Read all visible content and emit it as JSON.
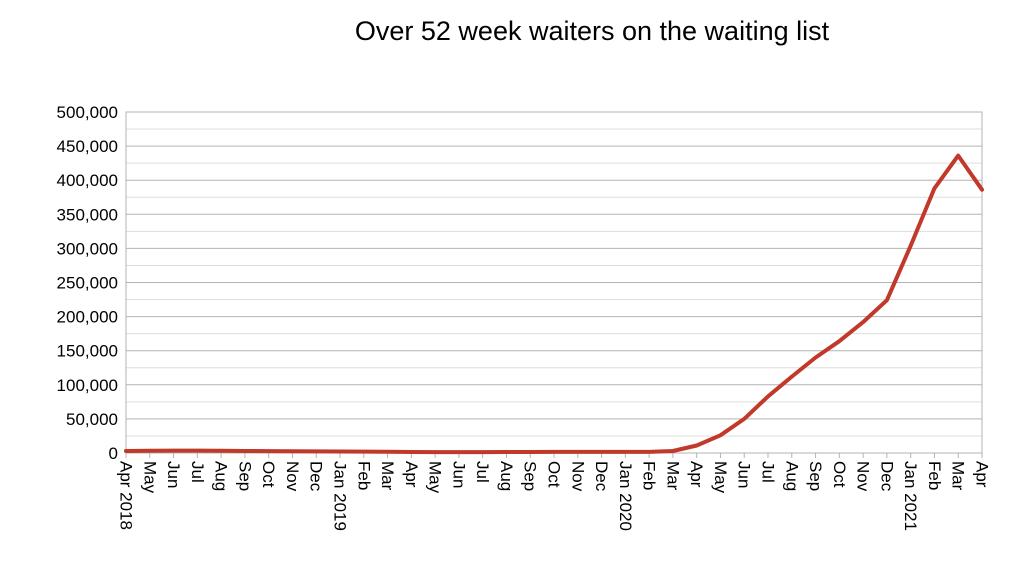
{
  "chart_data": {
    "type": "line",
    "title": "Over 52 week waiters on the waiting list",
    "xlabel": "",
    "ylabel": "",
    "ylim": [
      0,
      500000
    ],
    "yticks": [
      0,
      50000,
      100000,
      150000,
      200000,
      250000,
      300000,
      350000,
      400000,
      450000,
      500000
    ],
    "ytick_labels": [
      "0",
      "50,000",
      "100,000",
      "150,000",
      "200,000",
      "250,000",
      "300,000",
      "350,000",
      "400,000",
      "450,000",
      "500,000"
    ],
    "grid": true,
    "legend": "none",
    "categories": [
      "Apr 2018",
      "May",
      "Jun",
      "Jul",
      "Aug",
      "Sep",
      "Oct",
      "Nov",
      "Dec",
      "Jan 2019",
      "Feb",
      "Mar",
      "Apr",
      "May",
      "Jun",
      "Jul",
      "Aug",
      "Sep",
      "Oct",
      "Nov",
      "Dec",
      "Jan 2020",
      "Feb",
      "Mar",
      "Apr",
      "May",
      "Jun",
      "Jul",
      "Aug",
      "Sep",
      "Oct",
      "Nov",
      "Dec",
      "Jan 2021",
      "Feb",
      "Mar",
      "Apr"
    ],
    "series": [
      {
        "color": "#c0392b",
        "values": [
          3000,
          3200,
          3500,
          3500,
          3400,
          3000,
          2800,
          2500,
          2300,
          2200,
          2000,
          1700,
          1400,
          1300,
          1300,
          1300,
          1400,
          1500,
          1600,
          1600,
          1600,
          1600,
          1600,
          3000,
          11000,
          26000,
          50000,
          83000,
          112000,
          140000,
          164000,
          192000,
          224000,
          304000,
          388000,
          436000,
          386000
        ]
      }
    ]
  }
}
